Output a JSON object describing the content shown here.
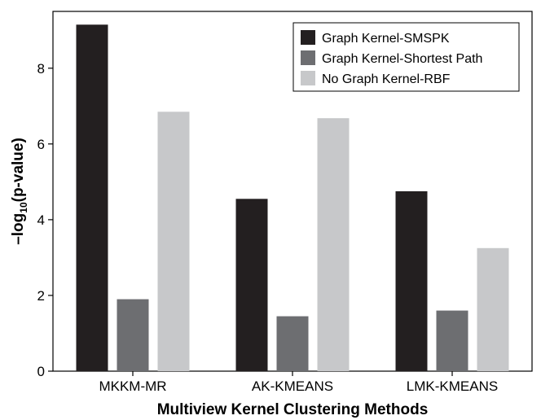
{
  "chart_data": {
    "type": "bar",
    "categories": [
      "MKKM-MR",
      "AK-KMEANS",
      "LMK-KMEANS"
    ],
    "series": [
      {
        "name": "Graph Kernel-SMSPK",
        "values": [
          9.15,
          4.55,
          4.75
        ],
        "color": "#231f20"
      },
      {
        "name": "Graph Kernel-Shortest Path",
        "values": [
          1.9,
          1.45,
          1.6
        ],
        "color": "#6d6e71"
      },
      {
        "name": "No Graph Kernel-RBF",
        "values": [
          6.85,
          6.68,
          3.25
        ],
        "color": "#c7c8ca"
      }
    ],
    "title": "",
    "xlabel": "Multiview Kernel Clustering Methods",
    "ylabel": {
      "prefix": "–log",
      "subscript": "10",
      "suffix": "(p-value)"
    },
    "ylim": [
      0,
      9.5
    ],
    "yticks": [
      "0",
      "2",
      "4",
      "6",
      "8"
    ],
    "legend_position": "top-right",
    "grid": false
  }
}
